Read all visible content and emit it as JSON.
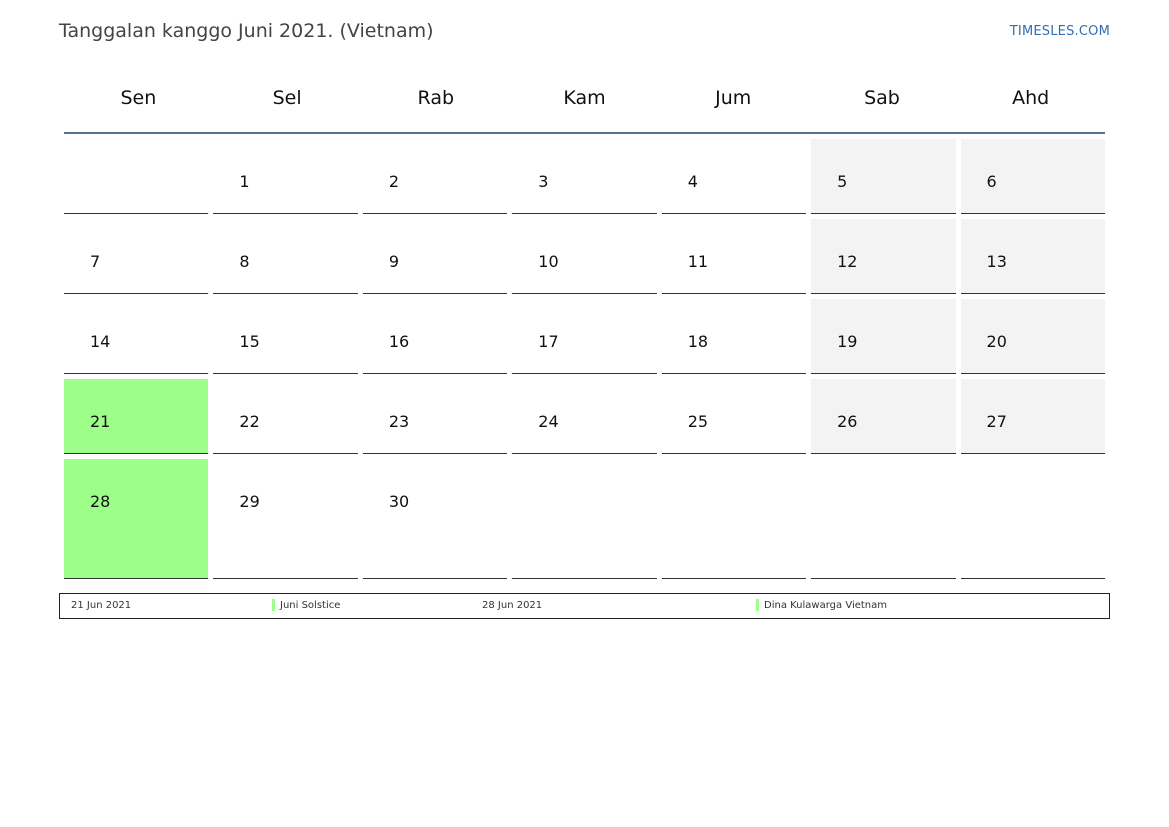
{
  "header": {
    "title": "Tanggalan kanggo Juni 2021. (Vietnam)",
    "brand": "TIMESLES.COM"
  },
  "calendar": {
    "weekdays": [
      "Sen",
      "Sel",
      "Rab",
      "Kam",
      "Jum",
      "Sab",
      "Ahd"
    ],
    "weeks": [
      [
        "",
        "1",
        "2",
        "3",
        "4",
        "5",
        "6"
      ],
      [
        "7",
        "8",
        "9",
        "10",
        "11",
        "12",
        "13"
      ],
      [
        "14",
        "15",
        "16",
        "17",
        "18",
        "19",
        "20"
      ],
      [
        "21",
        "22",
        "23",
        "24",
        "25",
        "26",
        "27"
      ],
      [
        "28",
        "29",
        "30",
        "",
        "",
        "",
        ""
      ]
    ],
    "holiday_color": "#9dfe8a",
    "weekend_color": "#f3f3f3"
  },
  "legend": [
    {
      "date": "21 Jun 2021",
      "label": "Juni Solstice"
    },
    {
      "date": "28 Jun 2021",
      "label": "Dina Kulawarga Vietnam"
    }
  ]
}
